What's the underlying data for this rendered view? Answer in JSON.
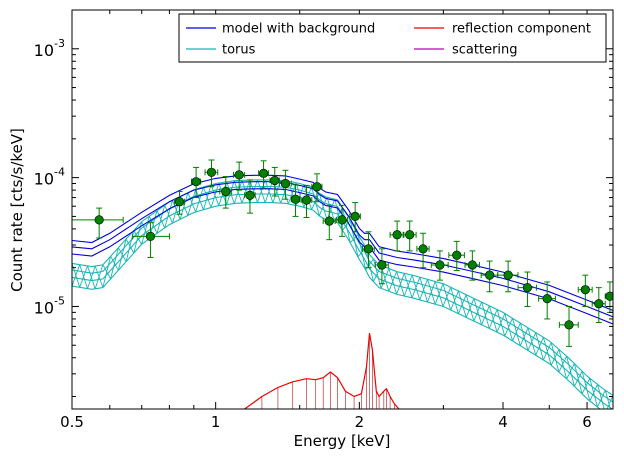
{
  "chart_data": {
    "type": "scatter",
    "xlabel": "Energy [keV]",
    "ylabel": "Count rate [cts/s/keV]",
    "xscale": "log",
    "yscale": "log",
    "xlim": [
      0.5,
      6.8
    ],
    "ylim": [
      1.6e-06,
      0.002
    ],
    "x_ticks": [
      {
        "value": 0.5,
        "label": "0.5"
      },
      {
        "value": 1,
        "label": "1"
      },
      {
        "value": 2,
        "label": "2"
      },
      {
        "value": 4,
        "label": "4"
      },
      {
        "value": 6,
        "label": "6"
      }
    ],
    "y_ticks": [
      {
        "value": 1e-05,
        "label": "10",
        "exp": "-5"
      },
      {
        "value": 0.0001,
        "label": "10",
        "exp": "-4"
      },
      {
        "value": 0.001,
        "label": "10",
        "exp": "-3"
      }
    ],
    "legend_position": "top-right",
    "legend": [
      {
        "label": "model with background",
        "color": "#0000dd"
      },
      {
        "label": "reflection component",
        "color": "#ee0000"
      },
      {
        "label": "torus",
        "color": "#1ab5b5"
      },
      {
        "label": "scattering",
        "color": "#bb00bb"
      }
    ],
    "model": {
      "color": "#0000dd",
      "x": [
        0.5,
        0.55,
        0.6,
        0.7,
        0.8,
        0.9,
        1.0,
        1.1,
        1.2,
        1.3,
        1.4,
        1.5,
        1.6,
        1.65,
        1.7,
        1.8,
        1.9,
        2.0,
        2.05,
        2.1,
        2.2,
        2.4,
        2.6,
        3.0,
        3.5,
        4.0,
        5.0,
        6.0,
        6.8
      ],
      "y": [
        2.9e-05,
        2.8e-05,
        3.3e-05,
        4.8e-05,
        6.5e-05,
        8e-05,
        8.8e-05,
        9.2e-05,
        9.3e-05,
        9.3e-05,
        9.2e-05,
        8.7e-05,
        8.2e-05,
        7.4e-05,
        6.9e-05,
        6.6e-05,
        5e-05,
        3.6e-05,
        3.3e-05,
        3.3e-05,
        2.6e-05,
        2.4e-05,
        2.3e-05,
        2.1e-05,
        1.85e-05,
        1.65e-05,
        1.3e-05,
        1e-05,
        8.3e-06
      ],
      "band_frac": 0.12
    },
    "torus": {
      "color": "#1ab5b5",
      "x": [
        0.5,
        0.55,
        0.58,
        0.62,
        0.7,
        0.8,
        0.9,
        1.0,
        1.1,
        1.2,
        1.3,
        1.4,
        1.5,
        1.6,
        1.65,
        1.7,
        1.8,
        1.9,
        2.0,
        2.05,
        2.1,
        2.2,
        2.4,
        2.6,
        3.0,
        3.5,
        4.0,
        5.0,
        5.5,
        6.0,
        6.5,
        6.8
      ],
      "y": [
        1.8e-05,
        1.7e-05,
        1.75e-05,
        2.3e-05,
        3.8e-05,
        5.4e-05,
        6.7e-05,
        7.5e-05,
        7.9e-05,
        8e-05,
        8e-05,
        7.9e-05,
        7.5e-05,
        7e-05,
        6.3e-05,
        5.9e-05,
        5.6e-05,
        4.1e-05,
        2.9e-05,
        2.5e-05,
        2.1e-05,
        1.75e-05,
        1.55e-05,
        1.45e-05,
        1.25e-05,
        9.5e-06,
        7.5e-06,
        4.5e-06,
        3.3e-06,
        2.4e-06,
        1.9e-06,
        1.7e-06
      ],
      "band_frac": 0.2
    },
    "reflection": {
      "color": "#ee0000",
      "x": [
        1.15,
        1.25,
        1.35,
        1.45,
        1.55,
        1.62,
        1.68,
        1.74,
        1.8,
        1.87,
        1.95,
        2.02,
        2.07,
        2.1,
        2.13,
        2.17,
        2.2,
        2.25,
        2.28,
        2.32,
        2.37,
        2.42
      ],
      "y": [
        1.6e-06,
        2e-06,
        2.35e-06,
        2.6e-06,
        2.75e-06,
        2.7e-06,
        2.8e-06,
        3.1e-06,
        2.8e-06,
        2.2e-06,
        2e-06,
        2.1e-06,
        3.4e-06,
        6.2e-06,
        4.6e-06,
        2.2e-06,
        2e-06,
        2.2e-06,
        2.3e-06,
        2e-06,
        1.75e-06,
        1.6e-06
      ]
    },
    "data_color": "#008000",
    "data": [
      {
        "x": 0.57,
        "y": 4.7e-05,
        "xerr": [
          0.07,
          0.07
        ],
        "yerr": [
          1.3e-05,
          1.1e-05
        ]
      },
      {
        "x": 0.73,
        "y": 3.5e-05,
        "xerr": [
          0.06,
          0.07
        ],
        "yerr": [
          1.1e-05,
          1e-05
        ]
      },
      {
        "x": 0.84,
        "y": 6.5e-05,
        "xerr": [
          0.02,
          0.02
        ],
        "yerr": [
          1.3e-05,
          1.3e-05
        ]
      },
      {
        "x": 0.91,
        "y": 9.3e-05,
        "xerr": [
          0.02,
          0.02
        ],
        "yerr": [
          2.3e-05,
          2.7e-05
        ]
      },
      {
        "x": 0.98,
        "y": 0.00011,
        "xerr": [
          0.03,
          0.03
        ],
        "yerr": [
          2.5e-05,
          2.7e-05
        ]
      },
      {
        "x": 1.05,
        "y": 7.8e-05,
        "xerr": [
          0.03,
          0.03
        ],
        "yerr": [
          2e-05,
          2.4e-05
        ]
      },
      {
        "x": 1.12,
        "y": 0.000105,
        "xerr": [
          0.03,
          0.03
        ],
        "yerr": [
          2.5e-05,
          2.7e-05
        ]
      },
      {
        "x": 1.18,
        "y": 7.3e-05,
        "xerr": [
          0.03,
          0.03
        ],
        "yerr": [
          2e-05,
          2.3e-05
        ]
      },
      {
        "x": 1.26,
        "y": 0.000108,
        "xerr": [
          0.03,
          0.03
        ],
        "yerr": [
          2.5e-05,
          2.7e-05
        ]
      },
      {
        "x": 1.33,
        "y": 9.5e-05,
        "xerr": [
          0.03,
          0.03
        ],
        "yerr": [
          2.3e-05,
          2.5e-05
        ]
      },
      {
        "x": 1.4,
        "y": 9e-05,
        "xerr": [
          0.04,
          0.04
        ],
        "yerr": [
          2.2e-05,
          2.4e-05
        ]
      },
      {
        "x": 1.47,
        "y": 6.8e-05,
        "xerr": [
          0.03,
          0.03
        ],
        "yerr": [
          1.8e-05,
          2e-05
        ]
      },
      {
        "x": 1.55,
        "y": 6.7e-05,
        "xerr": [
          0.04,
          0.04
        ],
        "yerr": [
          1.8e-05,
          2e-05
        ]
      },
      {
        "x": 1.63,
        "y": 8.5e-05,
        "xerr": [
          0.04,
          0.04
        ],
        "yerr": [
          2e-05,
          2.2e-05
        ]
      },
      {
        "x": 1.73,
        "y": 4.6e-05,
        "xerr": [
          0.05,
          0.05
        ],
        "yerr": [
          1.3e-05,
          1.5e-05
        ]
      },
      {
        "x": 1.84,
        "y": 4.7e-05,
        "xerr": [
          0.05,
          0.05
        ],
        "yerr": [
          1.2e-05,
          1.4e-05
        ]
      },
      {
        "x": 1.96,
        "y": 5e-05,
        "xerr": [
          0.05,
          0.05
        ],
        "yerr": [
          1.2e-05,
          1.4e-05
        ]
      },
      {
        "x": 2.09,
        "y": 2.8e-05,
        "xerr": [
          0.06,
          0.06
        ],
        "yerr": [
          8e-06,
          1e-05
        ]
      },
      {
        "x": 2.23,
        "y": 2.1e-05,
        "xerr": [
          0.07,
          0.07
        ],
        "yerr": [
          6e-06,
          7e-06
        ]
      },
      {
        "x": 2.4,
        "y": 3.6e-05,
        "xerr": [
          0.08,
          0.08
        ],
        "yerr": [
          9e-06,
          1e-05
        ]
      },
      {
        "x": 2.55,
        "y": 3.6e-05,
        "xerr": [
          0.08,
          0.08
        ],
        "yerr": [
          9e-06,
          1e-05
        ]
      },
      {
        "x": 2.72,
        "y": 2.8e-05,
        "xerr": [
          0.08,
          0.08
        ],
        "yerr": [
          8e-06,
          9e-06
        ]
      },
      {
        "x": 2.95,
        "y": 2.1e-05,
        "xerr": [
          0.12,
          0.12
        ],
        "yerr": [
          5e-06,
          6e-06
        ]
      },
      {
        "x": 3.2,
        "y": 2.5e-05,
        "xerr": [
          0.12,
          0.12
        ],
        "yerr": [
          6e-06,
          7e-06
        ]
      },
      {
        "x": 3.45,
        "y": 2.1e-05,
        "xerr": [
          0.12,
          0.12
        ],
        "yerr": [
          5e-06,
          6e-06
        ]
      },
      {
        "x": 3.75,
        "y": 1.75e-05,
        "xerr": [
          0.15,
          0.15
        ],
        "yerr": [
          4.5e-06,
          5e-06
        ]
      },
      {
        "x": 4.1,
        "y": 1.75e-05,
        "xerr": [
          0.2,
          0.2
        ],
        "yerr": [
          4.5e-06,
          5e-06
        ]
      },
      {
        "x": 4.5,
        "y": 1.4e-05,
        "xerr": [
          0.2,
          0.2
        ],
        "yerr": [
          4e-06,
          4.5e-06
        ]
      },
      {
        "x": 4.95,
        "y": 1.15e-05,
        "xerr": [
          0.2,
          0.2
        ],
        "yerr": [
          3.5e-06,
          4e-06
        ]
      },
      {
        "x": 5.5,
        "y": 7.2e-06,
        "xerr": [
          0.25,
          0.25
        ],
        "yerr": [
          2.3e-06,
          2.8e-06
        ]
      },
      {
        "x": 5.95,
        "y": 1.35e-05,
        "xerr": [
          0.2,
          0.2
        ],
        "yerr": [
          3.5e-06,
          4e-06
        ]
      },
      {
        "x": 6.35,
        "y": 1.05e-05,
        "xerr": [
          0.2,
          0.2
        ],
        "yerr": [
          3e-06,
          3.5e-06
        ]
      },
      {
        "x": 6.7,
        "y": 1.2e-05,
        "xerr": [
          0.15,
          0.1
        ],
        "yerr": [
          3e-06,
          3.5e-06
        ]
      }
    ]
  }
}
